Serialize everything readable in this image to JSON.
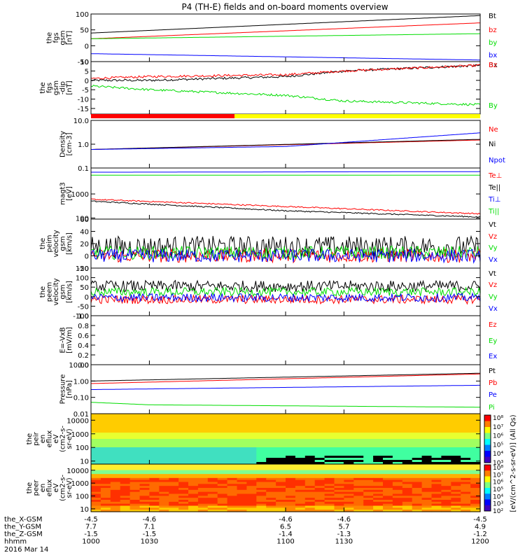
{
  "title": "P4 (TH-E) fields and on-board moments overview",
  "colors": {
    "black": "#000000",
    "red": "#ff0000",
    "green": "#00dd00",
    "blue": "#0000ff",
    "yellow": "#ffff00"
  },
  "chart_data": [
    {
      "type": "line",
      "id": "fgs_gsm",
      "ylabel": [
        "the",
        "fgs",
        "gsm",
        "[nT]"
      ],
      "ylim": [
        -50,
        100
      ],
      "ticks": [
        {
          "v": 100,
          "t": "100"
        },
        {
          "v": 50,
          "t": "50"
        },
        {
          "v": 0,
          "t": "0"
        },
        {
          "v": -50,
          "t": "-50"
        }
      ],
      "series": [
        {
          "name": "Bt",
          "color": "#000000",
          "x": [
            1000,
            1200
          ],
          "y": [
            40,
            95
          ]
        },
        {
          "name": "bz",
          "color": "#ff0000",
          "x": [
            1000,
            1200
          ],
          "y": [
            22,
            72
          ]
        },
        {
          "name": "by",
          "color": "#00dd00",
          "x": [
            1000,
            1200
          ],
          "y": [
            22,
            38
          ]
        },
        {
          "name": "bx",
          "color": "#0000ff",
          "x": [
            1000,
            1200
          ],
          "y": [
            -25,
            -45
          ]
        }
      ]
    },
    {
      "type": "line",
      "id": "fgs_gsm_detail",
      "ylabel": [
        "the",
        "fgs",
        "gsm",
        "-dip",
        "[nT]"
      ],
      "ylim": [
        -18,
        10
      ],
      "ticks": [
        {
          "v": 10,
          "t": "10"
        },
        {
          "v": 5,
          "t": "5"
        },
        {
          "v": 0,
          "t": "0"
        },
        {
          "v": -5,
          "t": "-5"
        },
        {
          "v": -10,
          "t": "-10"
        },
        {
          "v": -15,
          "t": "-15"
        }
      ],
      "series": [
        {
          "name": "Bx",
          "color": "#000000",
          "x": [
            1000,
            1030,
            1100,
            1130,
            1200
          ],
          "y": [
            0,
            0,
            2,
            5,
            8
          ]
        },
        {
          "name": "Bz",
          "color": "#ff0000",
          "x": [
            1000,
            1030,
            1100,
            1130,
            1200
          ],
          "y": [
            1,
            2,
            3,
            5,
            8
          ]
        },
        {
          "name": "By",
          "color": "#00dd00",
          "x": [
            1000,
            1030,
            1100,
            1130,
            1200
          ],
          "y": [
            -3,
            -5,
            -8,
            -11,
            -13
          ]
        }
      ]
    },
    {
      "type": "line",
      "id": "density",
      "ylabel": [
        "Density",
        "[cm-3]"
      ],
      "log": true,
      "ylim": [
        0.1,
        10
      ],
      "ticks": [
        {
          "v": 10,
          "t": "10.0"
        },
        {
          "v": 1,
          "t": "1.0"
        },
        {
          "v": 0.1,
          "t": "0.1"
        }
      ],
      "series": [
        {
          "name": "Ne",
          "color": "#ff0000",
          "x": [
            1000,
            1200
          ],
          "y": [
            0.6,
            1.5
          ]
        },
        {
          "name": "Ni",
          "color": "#000000",
          "x": [
            1000,
            1200
          ],
          "y": [
            0.6,
            1.6
          ]
        },
        {
          "name": "Npot",
          "color": "#0000ff",
          "x": [
            1000,
            1100,
            1200
          ],
          "y": [
            0.6,
            0.8,
            3
          ]
        }
      ]
    },
    {
      "type": "line",
      "id": "temperature",
      "ylabel": [
        "magt3",
        "[eV]"
      ],
      "log": true,
      "ylim": [
        90,
        12000
      ],
      "ticks": [
        {
          "v": 1000,
          "t": "1000"
        },
        {
          "v": 100,
          "t": "100"
        }
      ],
      "series": [
        {
          "name": "Te⊥",
          "color": "#ff0000",
          "x": [
            1000,
            1100,
            1200
          ],
          "y": [
            600,
            300,
            150
          ]
        },
        {
          "name": "Te||",
          "color": "#000000",
          "x": [
            1000,
            1100,
            1200
          ],
          "y": [
            500,
            200,
            110
          ]
        },
        {
          "name": "Ti⊥",
          "color": "#0000ff",
          "x": [
            1000,
            1200
          ],
          "y": [
            8000,
            8500
          ]
        },
        {
          "name": "Ti||",
          "color": "#00dd00",
          "x": [
            1000,
            1200
          ],
          "y": [
            6000,
            6000
          ]
        }
      ]
    },
    {
      "type": "line",
      "id": "peim_velocity",
      "ylabel": [
        "the",
        "peim",
        "velocity",
        "gsm",
        "[km/s]"
      ],
      "ylim": [
        -20,
        60
      ],
      "ticks": [
        {
          "v": 60,
          "t": "60"
        },
        {
          "v": 40,
          "t": "40"
        },
        {
          "v": 20,
          "t": "20"
        },
        {
          "v": 0,
          "t": "0"
        },
        {
          "v": -20,
          "t": "-20"
        }
      ],
      "series": [
        {
          "name": "Vt",
          "color": "#000000"
        },
        {
          "name": "Vz",
          "color": "#ff0000"
        },
        {
          "name": "Vy",
          "color": "#00dd00"
        },
        {
          "name": "Vx",
          "color": "#0000ff"
        }
      ]
    },
    {
      "type": "line",
      "id": "peem_velocity",
      "ylabel": [
        "the",
        "peem",
        "velocity",
        "gsm",
        "[km/s]"
      ],
      "ylim": [
        -100,
        150
      ],
      "ticks": [
        {
          "v": 150,
          "t": "150"
        },
        {
          "v": 100,
          "t": "100"
        },
        {
          "v": 50,
          "t": "50"
        },
        {
          "v": 0,
          "t": "0"
        },
        {
          "v": -50,
          "t": "-50"
        },
        {
          "v": -100,
          "t": "-100"
        }
      ],
      "series": [
        {
          "name": "Vt",
          "color": "#000000"
        },
        {
          "name": "Vz",
          "color": "#ff0000"
        },
        {
          "name": "Vy",
          "color": "#00dd00"
        },
        {
          "name": "Vx",
          "color": "#0000ff"
        }
      ]
    },
    {
      "type": "line",
      "id": "efield",
      "ylabel": [
        "E=-VxB",
        "[mV/m]"
      ],
      "ylim": [
        0,
        1
      ],
      "ticks": [
        {
          "v": 1,
          "t": "1.0"
        },
        {
          "v": 0.8,
          "t": "0.8"
        },
        {
          "v": 0.6,
          "t": "0.6"
        },
        {
          "v": 0.4,
          "t": "0.4"
        },
        {
          "v": 0.2,
          "t": "0.2"
        },
        {
          "v": 0,
          "t": "0.0"
        }
      ],
      "series": [
        {
          "name": "Ez",
          "color": "#ff0000"
        },
        {
          "name": "Ey",
          "color": "#00dd00"
        },
        {
          "name": "Ex",
          "color": "#0000ff"
        }
      ]
    },
    {
      "type": "line",
      "id": "pressure",
      "ylabel": [
        "Pressure",
        "[nPa]"
      ],
      "log": true,
      "ylim": [
        0.01,
        10
      ],
      "ticks": [
        {
          "v": 10,
          "t": "10.00"
        },
        {
          "v": 1,
          "t": "1.00"
        },
        {
          "v": 0.1,
          "t": "0.10"
        },
        {
          "v": 0.01,
          "t": "0.01"
        }
      ],
      "series": [
        {
          "name": "Pt",
          "color": "#000000",
          "x": [
            1000,
            1200
          ],
          "y": [
            1.0,
            3.0
          ]
        },
        {
          "name": "Pb",
          "color": "#ff0000",
          "x": [
            1000,
            1200
          ],
          "y": [
            0.7,
            2.7
          ]
        },
        {
          "name": "Pe",
          "color": "#0000ff",
          "x": [
            1000,
            1200
          ],
          "y": [
            0.3,
            0.55
          ]
        },
        {
          "name": "Pi",
          "color": "#00dd00",
          "x": [
            1000,
            1030,
            1200
          ],
          "y": [
            0.05,
            0.035,
            0.025
          ]
        }
      ]
    },
    {
      "type": "heatmap",
      "id": "peir_eflux",
      "ylabel": [
        "the",
        "peir",
        "en",
        "eflux",
        "eV",
        "(cm2-s-",
        "sr-eV)"
      ],
      "log": true,
      "ylim": [
        6,
        30000
      ],
      "ticks": [
        {
          "v": 10000,
          "t": "10000"
        },
        {
          "v": 1000,
          "t": "1000"
        },
        {
          "v": 100,
          "t": "100"
        },
        {
          "v": 10,
          "t": "10"
        }
      ]
    },
    {
      "type": "heatmap",
      "id": "peer_eflux",
      "ylabel": [
        "the",
        "peer",
        "en",
        "eflux",
        "eV",
        "(cm2-s-",
        "sr-eV)"
      ],
      "log": true,
      "ylim": [
        6,
        30000
      ],
      "ticks": [
        {
          "v": 10000,
          "t": "10000"
        },
        {
          "v": 1000,
          "t": "1000"
        },
        {
          "v": 100,
          "t": "100"
        },
        {
          "v": 10,
          "t": "10"
        }
      ]
    }
  ],
  "colorbar": {
    "label": "[eV/(cm^2-s-sr-eV)] (All Qs)",
    "ticks": [
      "10⁸",
      "10⁷",
      "10⁶",
      "10⁵",
      "10⁴",
      "10³"
    ],
    "ticks2": [
      "10⁸",
      "10⁷",
      "10⁶",
      "10⁵",
      "10⁴",
      "10³",
      "10²"
    ]
  },
  "xaxis": {
    "rows": [
      {
        "label": "the_X-GSM",
        "values": [
          "-4.5",
          "-4.6",
          "-4.6",
          "-4.6",
          "-4.5"
        ]
      },
      {
        "label": "the_Y-GSM",
        "values": [
          "7.7",
          "7.1",
          "6.5",
          "5.7",
          "4.9"
        ]
      },
      {
        "label": "the_Z-GSM",
        "values": [
          "-1.5",
          "-1.5",
          "-1.4",
          "-1.3",
          "-1.2"
        ]
      },
      {
        "label": "hhmm",
        "values": [
          "1000",
          "1030",
          "1100",
          "1130",
          "1200"
        ]
      }
    ],
    "date": "2016 Mar 14"
  }
}
